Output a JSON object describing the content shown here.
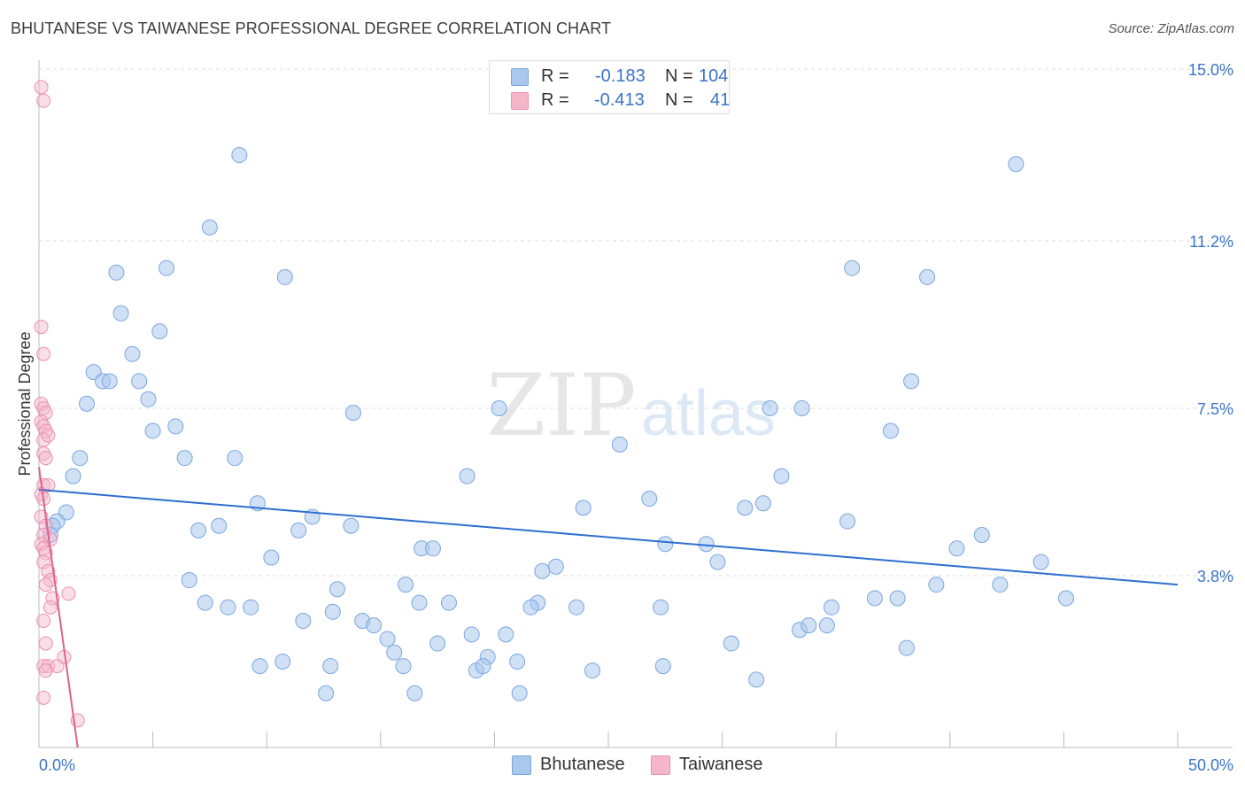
{
  "title": "BHUTANESE VS TAIWANESE PROFESSIONAL DEGREE CORRELATION CHART",
  "source": "Source: ZipAtlas.com",
  "watermark": {
    "zip": "ZIP",
    "atlas": "atlas"
  },
  "colors": {
    "bhutanese_fill": "#a9c8ee",
    "bhutanese_stroke": "#7aa6dd",
    "bhutanese_line": "#2e6fcf",
    "taiwanese_fill": "#f5b6c9",
    "taiwanese_stroke": "#ec8fae",
    "taiwanese_line": "#e0608d",
    "axis_label": "#3a74c9",
    "grid": "#dddddd"
  },
  "legend_top": {
    "rows": [
      {
        "r_label": "R =",
        "r_value": "-0.183",
        "n_label": "N =",
        "n_value": "104"
      },
      {
        "r_label": "R =",
        "r_value": "-0.413",
        "n_label": "N =",
        "n_value": "41"
      }
    ]
  },
  "legend_bottom": [
    "Bhutanese",
    "Taiwanese"
  ],
  "chart_data": {
    "type": "scatter",
    "title": "BHUTANESE VS TAIWANESE PROFESSIONAL DEGREE CORRELATION CHART",
    "xlabel": "",
    "ylabel": "Professional Degree",
    "xlim": [
      0,
      50
    ],
    "ylim": [
      0,
      15
    ],
    "x_tick_labels": [
      "0.0%",
      "50.0%"
    ],
    "y_ticks": [
      3.8,
      7.5,
      11.2,
      15.0
    ],
    "y_tick_labels": [
      "3.8%",
      "7.5%",
      "11.2%",
      "15.0%"
    ],
    "grid": true,
    "series": [
      {
        "name": "Bhutanese",
        "r": -0.183,
        "n": 104,
        "trend": {
          "x": [
            0,
            50
          ],
          "y": [
            5.7,
            3.6
          ]
        },
        "points": [
          [
            8.8,
            13.1
          ],
          [
            42.9,
            12.9
          ],
          [
            7.5,
            11.5
          ],
          [
            3.4,
            10.5
          ],
          [
            5.6,
            10.6
          ],
          [
            10.8,
            10.4
          ],
          [
            35.7,
            10.6
          ],
          [
            39.0,
            10.4
          ],
          [
            3.6,
            9.6
          ],
          [
            5.3,
            9.2
          ],
          [
            4.1,
            8.7
          ],
          [
            2.4,
            8.3
          ],
          [
            2.8,
            8.1
          ],
          [
            3.1,
            8.1
          ],
          [
            4.4,
            8.1
          ],
          [
            38.3,
            8.1
          ],
          [
            2.1,
            7.6
          ],
          [
            4.8,
            7.7
          ],
          [
            13.8,
            7.4
          ],
          [
            20.2,
            7.5
          ],
          [
            32.1,
            7.5
          ],
          [
            33.5,
            7.5
          ],
          [
            5.0,
            7.0
          ],
          [
            6.0,
            7.1
          ],
          [
            37.4,
            7.0
          ],
          [
            25.5,
            6.7
          ],
          [
            1.8,
            6.4
          ],
          [
            6.4,
            6.4
          ],
          [
            8.6,
            6.4
          ],
          [
            1.5,
            6.0
          ],
          [
            18.8,
            6.0
          ],
          [
            32.6,
            6.0
          ],
          [
            9.6,
            5.4
          ],
          [
            23.9,
            5.3
          ],
          [
            26.8,
            5.5
          ],
          [
            31.0,
            5.3
          ],
          [
            31.8,
            5.4
          ],
          [
            1.2,
            5.2
          ],
          [
            0.8,
            5.0
          ],
          [
            12.0,
            5.1
          ],
          [
            0.6,
            4.9
          ],
          [
            7.9,
            4.9
          ],
          [
            13.7,
            4.9
          ],
          [
            35.5,
            5.0
          ],
          [
            7.0,
            4.8
          ],
          [
            11.4,
            4.8
          ],
          [
            0.5,
            4.7
          ],
          [
            41.4,
            4.7
          ],
          [
            16.8,
            4.4
          ],
          [
            17.3,
            4.4
          ],
          [
            27.5,
            4.5
          ],
          [
            29.3,
            4.5
          ],
          [
            40.3,
            4.4
          ],
          [
            10.2,
            4.2
          ],
          [
            29.8,
            4.1
          ],
          [
            44.0,
            4.1
          ],
          [
            22.7,
            4.0
          ],
          [
            22.1,
            3.9
          ],
          [
            6.6,
            3.7
          ],
          [
            16.1,
            3.6
          ],
          [
            39.4,
            3.6
          ],
          [
            42.2,
            3.6
          ],
          [
            13.1,
            3.5
          ],
          [
            36.7,
            3.3
          ],
          [
            37.7,
            3.3
          ],
          [
            45.1,
            3.3
          ],
          [
            7.3,
            3.2
          ],
          [
            16.7,
            3.2
          ],
          [
            18.0,
            3.2
          ],
          [
            21.9,
            3.2
          ],
          [
            8.3,
            3.1
          ],
          [
            9.3,
            3.1
          ],
          [
            12.9,
            3.0
          ],
          [
            21.6,
            3.1
          ],
          [
            23.6,
            3.1
          ],
          [
            27.3,
            3.1
          ],
          [
            34.8,
            3.1
          ],
          [
            11.6,
            2.8
          ],
          [
            14.2,
            2.8
          ],
          [
            14.7,
            2.7
          ],
          [
            33.4,
            2.6
          ],
          [
            33.8,
            2.7
          ],
          [
            34.6,
            2.7
          ],
          [
            19.0,
            2.5
          ],
          [
            20.5,
            2.5
          ],
          [
            15.3,
            2.4
          ],
          [
            17.5,
            2.3
          ],
          [
            30.4,
            2.3
          ],
          [
            15.6,
            2.1
          ],
          [
            38.1,
            2.2
          ],
          [
            10.7,
            1.9
          ],
          [
            12.8,
            1.8
          ],
          [
            16.0,
            1.8
          ],
          [
            19.7,
            2.0
          ],
          [
            21.0,
            1.9
          ],
          [
            9.7,
            1.8
          ],
          [
            19.2,
            1.7
          ],
          [
            19.5,
            1.8
          ],
          [
            24.3,
            1.7
          ],
          [
            27.4,
            1.8
          ],
          [
            31.5,
            1.5
          ],
          [
            12.6,
            1.2
          ],
          [
            16.5,
            1.2
          ],
          [
            21.1,
            1.2
          ]
        ]
      },
      {
        "name": "Taiwanese",
        "r": -0.413,
        "n": 41,
        "trend": {
          "x": [
            0,
            1.7
          ],
          "y": [
            6.2,
            0
          ]
        },
        "points": [
          [
            0.1,
            14.6
          ],
          [
            0.2,
            14.3
          ],
          [
            0.1,
            9.3
          ],
          [
            0.2,
            8.7
          ],
          [
            0.1,
            7.6
          ],
          [
            0.2,
            7.5
          ],
          [
            0.3,
            7.4
          ],
          [
            0.1,
            7.2
          ],
          [
            0.2,
            7.1
          ],
          [
            0.3,
            7.0
          ],
          [
            0.2,
            6.8
          ],
          [
            0.4,
            6.9
          ],
          [
            0.2,
            6.5
          ],
          [
            0.3,
            6.4
          ],
          [
            0.2,
            5.8
          ],
          [
            0.4,
            5.8
          ],
          [
            0.1,
            5.6
          ],
          [
            0.2,
            5.5
          ],
          [
            0.1,
            5.1
          ],
          [
            0.3,
            4.9
          ],
          [
            0.2,
            4.7
          ],
          [
            0.5,
            4.6
          ],
          [
            0.1,
            4.5
          ],
          [
            0.2,
            4.4
          ],
          [
            0.3,
            4.3
          ],
          [
            0.2,
            4.1
          ],
          [
            0.4,
            3.9
          ],
          [
            0.5,
            3.7
          ],
          [
            0.3,
            3.6
          ],
          [
            1.3,
            3.4
          ],
          [
            0.6,
            3.3
          ],
          [
            0.5,
            3.1
          ],
          [
            0.2,
            2.8
          ],
          [
            0.3,
            2.3
          ],
          [
            1.1,
            2.0
          ],
          [
            0.2,
            1.8
          ],
          [
            0.4,
            1.8
          ],
          [
            0.8,
            1.8
          ],
          [
            0.3,
            1.7
          ],
          [
            0.2,
            1.1
          ],
          [
            1.7,
            0.6
          ]
        ]
      }
    ]
  }
}
